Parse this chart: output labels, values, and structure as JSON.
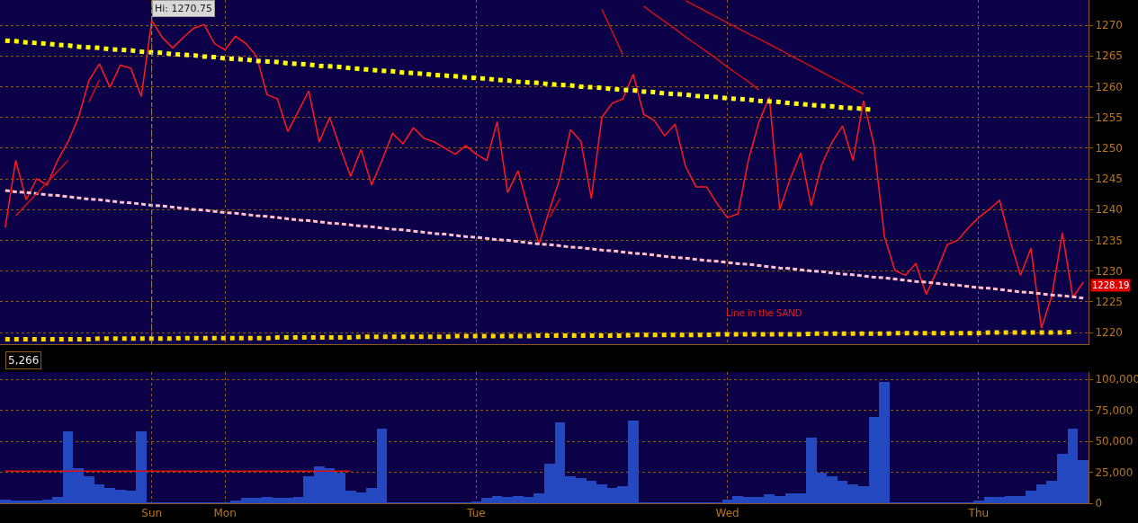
{
  "chart_data": [
    {
      "type": "line",
      "tick_labels": "y",
      "grid": true,
      "categories": [
        null,
        null,
        null,
        null,
        null,
        null,
        null,
        null,
        null,
        null,
        null,
        null,
        null,
        null,
        "Sun",
        null,
        null,
        null,
        null,
        null,
        null,
        "Mon",
        null,
        null,
        null,
        null,
        null,
        null,
        null,
        null,
        null,
        null,
        null,
        null,
        null,
        null,
        null,
        null,
        null,
        null,
        null,
        null,
        null,
        null,
        null,
        "Tue",
        null,
        null,
        null,
        null,
        null,
        null,
        null,
        null,
        null,
        null,
        null,
        null,
        null,
        null,
        null,
        null,
        null,
        null,
        null,
        null,
        null,
        null,
        null,
        "Wed",
        null,
        null,
        null,
        null,
        null,
        null,
        null,
        null,
        null,
        null,
        null,
        null,
        null,
        null,
        null,
        null,
        null,
        null,
        null,
        null,
        null,
        null,
        null,
        "Thu",
        null,
        null,
        null,
        null,
        null,
        null,
        null,
        null,
        null,
        null
      ],
      "ylim": [
        1218.1,
        1274.1
      ],
      "yticks": [
        1220,
        1225,
        1230,
        1235,
        1240,
        1245,
        1250,
        1255,
        1260,
        1265,
        1270
      ],
      "ref_lines": [
        {
          "axis": "x",
          "value": "Sun",
          "color": "#8c8c8c",
          "line_style": "dashed"
        }
      ],
      "annotations": [
        {
          "text": "Hi: 1270.75",
          "x": "Sun",
          "y": 1270.75
        },
        "Line in the SAND",
        "1228.19"
      ],
      "series": [
        {
          "color": "#ff1a1a",
          "line_style": "solid",
          "values": [
            1237.1,
            1248,
            1241.6,
            1245,
            1244,
            1248,
            1251,
            1255,
            1261,
            1263.7,
            1259.9,
            1263.5,
            1263,
            1258.4,
            1270.75,
            1268,
            1266.3,
            1268,
            1269.5,
            1270.1,
            1267,
            1266,
            1268.2,
            1267,
            1265,
            1258.7,
            1258,
            1252.7,
            1256,
            1259.3,
            1251,
            1255,
            1250,
            1245.4,
            1249.8,
            1244,
            1248,
            1252.4,
            1250.7,
            1253.3,
            1251.6,
            1251,
            1250,
            1249,
            1250.4,
            1249,
            1248,
            1254.3,
            1242.8,
            1246.3,
            1240,
            1234.4,
            1240,
            1245.1,
            1253,
            1251.1,
            1241.8,
            1255,
            1257.3,
            1258,
            1262,
            1255.5,
            1254.5,
            1252,
            1253.9,
            1247,
            1243.7,
            1243.7,
            1241,
            1238.7,
            1239.3,
            1248,
            1254.2,
            1258.3,
            1240,
            1245,
            1249.2,
            1240.6,
            1247.3,
            1251,
            1253.6,
            1248,
            1257.7,
            1250.5,
            1235.6,
            1230.1,
            1229.3,
            1231.2,
            1226.2,
            1230,
            1234.3,
            1235,
            1237,
            1238.7,
            1240,
            1241.5,
            1235,
            1229.3,
            1233.7,
            1220.7,
            1226,
            1236.2,
            1225.7,
            1228.19
          ]
        },
        {
          "color": "#ffff00",
          "line_style": "dotted",
          "values": [
            1267.5,
            1267.4,
            1267.2,
            1267.1,
            1267.0,
            1266.8,
            1266.7,
            1266.5,
            1266.4,
            1266.3,
            1266.1,
            1266.0,
            1265.9,
            1265.7,
            1265.6,
            1265.5,
            1265.3,
            1265.2,
            1265.1,
            1264.9,
            1264.8,
            1264.6,
            1264.5,
            1264.4,
            1264.2,
            1264.1,
            1264.0,
            1263.8,
            1263.7,
            1263.6,
            1263.4,
            1263.3,
            1263.2,
            1263.0,
            1262.9,
            1262.7,
            1262.6,
            1262.5,
            1262.3,
            1262.2,
            1262.1,
            1261.9,
            1261.8,
            1261.7,
            1261.5,
            1261.4,
            1261.3,
            1261.1,
            1261.0,
            1260.8,
            1260.7,
            1260.6,
            1260.4,
            1260.3,
            1260.2,
            1260.0,
            1259.9,
            1259.8,
            1259.6,
            1259.5,
            1259.4,
            1259.2,
            1259.1,
            1258.9,
            1258.8,
            1258.7,
            1258.5,
            1258.4,
            1258.3,
            1258.1,
            1258.0,
            1257.9,
            1257.7,
            1257.6,
            1257.5,
            1257.3,
            1257.2,
            1257.0,
            1256.9,
            1256.8,
            1256.6,
            1256.5,
            1256.4,
            1256.2,
            null,
            null,
            null,
            null,
            null,
            null,
            null,
            null,
            null,
            null,
            null,
            null,
            null,
            null,
            null,
            null,
            null,
            null,
            null,
            null
          ]
        },
        {
          "color": "#ffc0cb",
          "line_style": "dashed",
          "values": [
            1243.1,
            1242.9,
            1242.8,
            1242.6,
            1242.4,
            1242.3,
            1242.1,
            1241.9,
            1241.7,
            1241.6,
            1241.4,
            1241.2,
            1241.1,
            1240.9,
            1240.7,
            1240.6,
            1240.4,
            1240.2,
            1240.0,
            1239.9,
            1239.7,
            1239.5,
            1239.4,
            1239.2,
            1239.0,
            1238.9,
            1238.7,
            1238.5,
            1238.3,
            1238.2,
            1238.0,
            1237.8,
            1237.7,
            1237.5,
            1237.3,
            1237.2,
            1237.0,
            1236.8,
            1236.7,
            1236.5,
            1236.3,
            1236.1,
            1236.0,
            1235.8,
            1235.6,
            1235.5,
            1235.3,
            1235.1,
            1235.0,
            1234.8,
            1234.6,
            1234.4,
            1234.3,
            1234.1,
            1233.9,
            1233.8,
            1233.6,
            1233.4,
            1233.3,
            1233.1,
            1232.9,
            1232.8,
            1232.6,
            1232.4,
            1232.2,
            1232.1,
            1231.9,
            1231.7,
            1231.6,
            1231.4,
            1231.2,
            1231.1,
            1230.9,
            1230.7,
            1230.5,
            1230.4,
            1230.2,
            1230.0,
            1229.9,
            1229.7,
            1229.5,
            1229.4,
            1229.2,
            1229.0,
            1228.9,
            1228.7,
            1228.5,
            1228.3,
            1228.2,
            1228.0,
            1227.8,
            1227.7,
            1227.5,
            1227.3,
            1227.2,
            1227.0,
            1226.8,
            1226.6,
            1226.5,
            1226.3,
            1226.1,
            1226.0,
            1225.8,
            1225.6
          ]
        },
        {
          "color": "#ffd700",
          "line_style": "dotted",
          "values": [
            1218.9,
            1218.9,
            1218.9,
            1218.9,
            1218.9,
            1218.9,
            1218.9,
            1218.9,
            1218.9,
            1219.0,
            1219.0,
            1219.0,
            1219.0,
            1219.0,
            1219.0,
            1219.0,
            1219.0,
            1219.1,
            1219.1,
            1219.1,
            1219.1,
            1219.1,
            1219.1,
            1219.1,
            1219.1,
            1219.1,
            1219.2,
            1219.2,
            1219.2,
            1219.2,
            1219.2,
            1219.2,
            1219.2,
            1219.2,
            1219.3,
            1219.3,
            1219.3,
            1219.3,
            1219.3,
            1219.3,
            1219.3,
            1219.3,
            1219.3,
            1219.4,
            1219.4,
            1219.4,
            1219.4,
            1219.4,
            1219.4,
            1219.4,
            1219.4,
            1219.5,
            1219.5,
            1219.5,
            1219.5,
            1219.5,
            1219.5,
            1219.5,
            1219.5,
            1219.5,
            1219.6,
            1219.6,
            1219.6,
            1219.6,
            1219.6,
            1219.6,
            1219.6,
            1219.6,
            1219.7,
            1219.7,
            1219.7,
            1219.7,
            1219.7,
            1219.7,
            1219.7,
            1219.7,
            1219.7,
            1219.8,
            1219.8,
            1219.8,
            1219.8,
            1219.8,
            1219.8,
            1219.8,
            1219.8,
            1219.9,
            1219.9,
            1219.9,
            1219.9,
            1219.9,
            1219.9,
            1219.9,
            1219.9,
            1219.9,
            1220.0,
            1220.0,
            1220.0,
            1220.0,
            1220.0,
            1220.0,
            1220.0,
            1220.0,
            1220.1,
            null
          ]
        },
        {
          "color": "#d01010",
          "line_style": "solid",
          "values": [
            null,
            null,
            null,
            null,
            null,
            null,
            null,
            null,
            null,
            null,
            null,
            null,
            null,
            null,
            null,
            null,
            null,
            null,
            null,
            null,
            null,
            null,
            null,
            null,
            null,
            null,
            null,
            null,
            null,
            null,
            null,
            null,
            null,
            null,
            null,
            null,
            null,
            null,
            null,
            null,
            null,
            null,
            null,
            null,
            null,
            null,
            null,
            null,
            null,
            null,
            null,
            null,
            null,
            null,
            null,
            null,
            null,
            1272.6,
            1268.9,
            1265.2,
            null,
            null,
            null,
            null,
            null,
            null,
            null,
            null,
            null,
            null,
            null,
            null,
            null,
            null,
            null,
            null,
            null,
            null,
            null,
            null,
            null,
            null,
            null,
            null,
            null,
            null,
            null,
            null,
            null,
            null,
            null,
            null,
            null,
            null,
            null,
            null,
            null,
            null,
            null,
            null,
            null,
            null,
            null,
            null
          ]
        },
        {
          "color": "#d01010",
          "line_style": "solid",
          "values": [
            null,
            null,
            null,
            null,
            null,
            null,
            null,
            null,
            null,
            null,
            null,
            null,
            null,
            null,
            null,
            null,
            null,
            null,
            null,
            null,
            null,
            null,
            null,
            null,
            null,
            null,
            null,
            null,
            null,
            null,
            null,
            null,
            null,
            null,
            null,
            null,
            null,
            null,
            null,
            null,
            null,
            null,
            null,
            null,
            null,
            null,
            null,
            null,
            null,
            null,
            null,
            null,
            null,
            null,
            null,
            null,
            null,
            null,
            null,
            null,
            null,
            1273.1,
            1271.8,
            1270.6,
            1269.4,
            1268.1,
            1266.9,
            1265.7,
            1264.5,
            1263.2,
            1262.0,
            1260.8,
            1259.5,
            null,
            null,
            null,
            null,
            null,
            null,
            null,
            null,
            null,
            null,
            null,
            null,
            null,
            null,
            null,
            null,
            null,
            null,
            null,
            null,
            null,
            null,
            null,
            null,
            null,
            null,
            null,
            null,
            null,
            null,
            null
          ]
        },
        {
          "color": "#d01010",
          "line_style": "solid",
          "values": [
            null,
            null,
            null,
            null,
            null,
            null,
            null,
            null,
            null,
            null,
            null,
            null,
            null,
            null,
            null,
            null,
            null,
            null,
            null,
            null,
            null,
            null,
            null,
            null,
            null,
            null,
            null,
            null,
            null,
            null,
            null,
            null,
            null,
            null,
            null,
            null,
            null,
            null,
            null,
            null,
            null,
            null,
            null,
            null,
            null,
            null,
            null,
            null,
            null,
            null,
            null,
            null,
            null,
            null,
            null,
            null,
            null,
            null,
            null,
            null,
            null,
            null,
            null,
            null,
            null,
            1274.0,
            1273.1,
            1272.2,
            1271.3,
            1270.4,
            1269.5,
            1268.6,
            1267.8,
            1266.9,
            1266.0,
            1265.1,
            1264.2,
            1263.3,
            1262.4,
            1261.5,
            1260.6,
            1259.7,
            1258.8,
            null,
            null,
            null,
            null,
            null,
            null,
            null,
            null,
            null,
            null,
            null,
            null,
            null,
            null,
            null,
            null,
            null,
            null,
            null,
            null,
            null
          ]
        },
        {
          "color": "#d01010",
          "line_style": "solid",
          "values": [
            null,
            1239.0,
            1240.8,
            1242.6,
            1244.4,
            1246.2,
            1248.0,
            null,
            null,
            null,
            null,
            null,
            null,
            null,
            null,
            null,
            null,
            null,
            null,
            null,
            null,
            null,
            null,
            null,
            null,
            null,
            null,
            null,
            null,
            null,
            null,
            null,
            null,
            null,
            null,
            null,
            null,
            null,
            null,
            null,
            null,
            null,
            null,
            null,
            null,
            null,
            null,
            null,
            null,
            null,
            null,
            null,
            null,
            null,
            null,
            null,
            null,
            null,
            null,
            null,
            null,
            null,
            null,
            null,
            null,
            null,
            null,
            null,
            null,
            null,
            null,
            null,
            null,
            null,
            null,
            null,
            null,
            null,
            null,
            null,
            null,
            null,
            null,
            null,
            null,
            null,
            null,
            null,
            null,
            null,
            null,
            null,
            null,
            null,
            null,
            null,
            null,
            null,
            null,
            null,
            null,
            null,
            null,
            null
          ]
        },
        {
          "color": "#d01010",
          "line_style": "solid",
          "values": [
            null,
            null,
            null,
            null,
            null,
            null,
            null,
            null,
            1257.5,
            1261.1,
            null,
            null,
            null,
            null,
            null,
            null,
            null,
            null,
            null,
            null,
            null,
            null,
            null,
            null,
            null,
            null,
            null,
            null,
            null,
            null,
            null,
            null,
            null,
            null,
            null,
            null,
            null,
            null,
            null,
            null,
            null,
            null,
            null,
            null,
            null,
            null,
            null,
            null,
            null,
            null,
            null,
            null,
            null,
            null,
            null,
            null,
            null,
            null,
            null,
            null,
            null,
            null,
            null,
            null,
            null,
            null,
            null,
            null,
            null,
            null,
            null,
            null,
            null,
            null,
            null,
            null,
            null,
            null,
            null,
            null,
            null,
            null,
            null,
            null,
            null,
            null,
            null,
            null,
            null,
            null,
            null,
            null,
            null,
            null,
            null,
            null,
            null,
            null,
            null,
            null,
            null,
            null,
            null,
            null
          ]
        },
        {
          "color": "#d01010",
          "line_style": "solid",
          "values": [
            null,
            null,
            null,
            null,
            null,
            null,
            null,
            null,
            null,
            null,
            null,
            null,
            null,
            null,
            null,
            null,
            null,
            null,
            null,
            null,
            null,
            null,
            null,
            null,
            null,
            null,
            null,
            null,
            null,
            null,
            null,
            null,
            null,
            null,
            null,
            null,
            null,
            null,
            null,
            null,
            null,
            null,
            null,
            null,
            null,
            null,
            null,
            null,
            null,
            null,
            null,
            null,
            1238.7,
            1241.8,
            null,
            null,
            null,
            null,
            null,
            null,
            null,
            null,
            null,
            null,
            null,
            null,
            null,
            null,
            null,
            null,
            null,
            null,
            null,
            null,
            null,
            null,
            null,
            null,
            null,
            null,
            null,
            null,
            null,
            null,
            null,
            null,
            null,
            null,
            null,
            null,
            null,
            null,
            null,
            null,
            null,
            null,
            null,
            null,
            null,
            null,
            null,
            null,
            null,
            null
          ]
        }
      ]
    },
    {
      "type": "bar",
      "grid": true,
      "categories": [
        null,
        null,
        null,
        null,
        null,
        null,
        null,
        null,
        null,
        null,
        null,
        null,
        null,
        null,
        "Sun",
        null,
        null,
        null,
        null,
        null,
        null,
        "Mon",
        null,
        null,
        null,
        null,
        null,
        null,
        null,
        null,
        null,
        null,
        null,
        null,
        null,
        null,
        null,
        null,
        null,
        null,
        null,
        null,
        null,
        null,
        null,
        "Tue",
        null,
        null,
        null,
        null,
        null,
        null,
        null,
        null,
        null,
        null,
        null,
        null,
        null,
        null,
        null,
        null,
        null,
        null,
        null,
        null,
        null,
        null,
        null,
        "Wed",
        null,
        null,
        null,
        null,
        null,
        null,
        null,
        null,
        null,
        null,
        null,
        null,
        null,
        null,
        null,
        null,
        null,
        null,
        null,
        null,
        null,
        null,
        null,
        "Thu",
        null,
        null,
        null,
        null,
        null,
        null,
        null,
        null,
        null,
        null
      ],
      "ylim": [
        0,
        106000
      ],
      "yticks": [
        0,
        {
          "value": 25000,
          "label": "25,000"
        },
        {
          "value": 50000,
          "label": "50,000"
        },
        {
          "value": 75000,
          "label": "75,000"
        },
        {
          "value": 100000,
          "label": "100,000"
        }
      ],
      "annotations": [
        "5,266"
      ],
      "series": [
        {
          "color": "#2448c0",
          "values": [
            3000,
            2500,
            2500,
            2000,
            3000,
            5000,
            58000,
            28000,
            22000,
            15000,
            12000,
            11000,
            10000,
            58000,
            1000,
            800,
            800,
            700,
            800,
            700,
            800,
            900,
            2000,
            4000,
            4000,
            5000,
            4000,
            4000,
            5000,
            22000,
            30000,
            28000,
            25000,
            10000,
            9000,
            12000,
            60000,
            600,
            500,
            500,
            500,
            500,
            500,
            600,
            700,
            1500,
            4000,
            6000,
            5000,
            6000,
            5000,
            8000,
            32000,
            65000,
            22000,
            20000,
            18000,
            15000,
            12000,
            14000,
            67000,
            800,
            700,
            700,
            800,
            700,
            600,
            700,
            1000,
            3000,
            6000,
            5000,
            5000,
            7000,
            6000,
            8000,
            8000,
            53000,
            25000,
            22000,
            18000,
            15000,
            14000,
            70000,
            98000,
            800,
            700,
            700,
            600,
            700,
            700,
            700,
            700,
            2000,
            5000,
            5000,
            6000,
            6000,
            10000,
            15000,
            18000,
            40000,
            60000,
            35000
          ]
        },
        {
          "type": "line",
          "color": "#e01010",
          "line_style": "solid",
          "values": [
            26000,
            26000,
            26000,
            26000,
            26000,
            26000,
            26000,
            26000,
            26000,
            26000,
            26000,
            26000,
            26000,
            26000,
            26000,
            26000,
            26000,
            26000,
            26000,
            26000,
            26000,
            26000,
            26000,
            26000,
            26000,
            26000,
            26000,
            26000,
            26000,
            26000,
            26000,
            26000,
            26000,
            26000,
            null,
            null,
            null,
            null,
            null,
            null,
            null,
            null,
            null,
            null,
            null,
            null,
            null,
            null,
            null,
            null,
            null,
            null,
            null,
            null,
            null,
            null,
            null,
            null,
            null,
            null,
            null,
            null,
            null,
            null,
            null,
            null,
            null,
            null,
            null,
            null,
            null,
            null,
            null,
            null,
            null,
            null,
            null,
            null,
            null,
            null,
            null,
            null,
            null,
            null,
            null,
            null,
            null,
            null,
            null,
            null,
            null,
            null,
            null,
            null,
            null,
            null,
            null,
            null,
            null,
            null,
            null,
            null,
            null,
            null
          ]
        }
      ]
    }
  ]
}
